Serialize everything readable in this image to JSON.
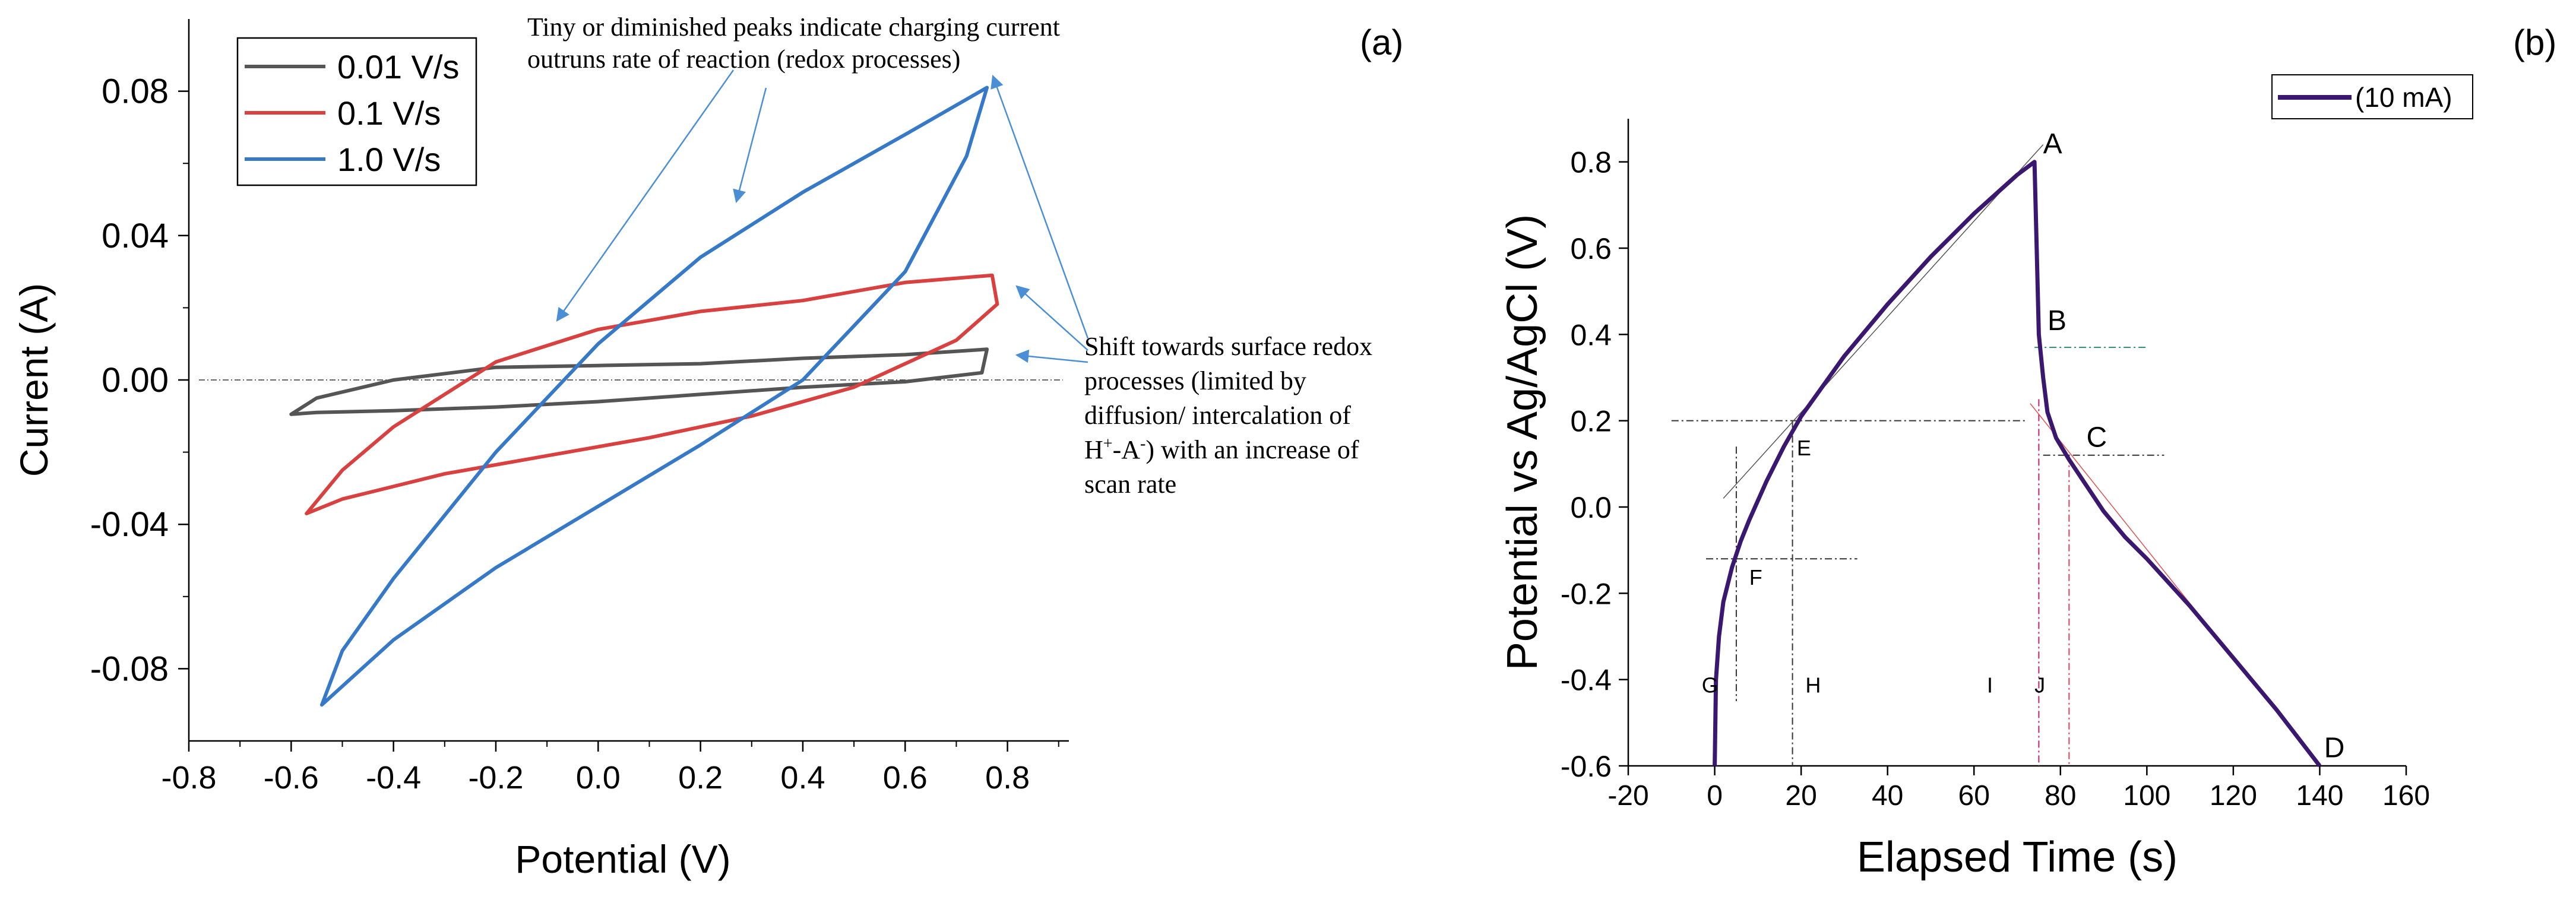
{
  "chart_data": [
    {
      "panel": "(a)",
      "type": "line",
      "title": "",
      "xlabel": "Potential (V)",
      "ylabel": "Current (A)",
      "xlim": [
        -0.8,
        0.92
      ],
      "ylim": [
        -0.1,
        0.1
      ],
      "xticks": [
        -0.8,
        -0.6,
        -0.4,
        -0.2,
        0.0,
        0.2,
        0.4,
        0.6,
        0.8
      ],
      "xtick_labels": [
        "-0.8",
        "-0.6",
        "-0.4",
        "-0.2",
        "0.0",
        "0.2",
        "0.4",
        "0.6",
        "0.8"
      ],
      "yticks": [
        -0.08,
        -0.04,
        0.0,
        0.04,
        0.08
      ],
      "ytick_labels": [
        "-0.08",
        "-0.04",
        "0.00",
        "0.04",
        "0.08"
      ],
      "legend_position": "top-left",
      "series": [
        {
          "name": "0.01 V/s",
          "color": "#555555",
          "x": [
            -0.6,
            -0.55,
            -0.4,
            -0.2,
            0.0,
            0.2,
            0.4,
            0.6,
            0.76,
            0.75,
            0.6,
            0.4,
            0.2,
            0.0,
            -0.2,
            -0.4,
            -0.55,
            -0.6
          ],
          "y": [
            -0.0095,
            -0.005,
            0.0,
            0.0035,
            0.004,
            0.0045,
            0.006,
            0.007,
            0.0085,
            0.002,
            -0.0005,
            -0.002,
            -0.004,
            -0.006,
            -0.0075,
            -0.0085,
            -0.009,
            -0.0095
          ]
        },
        {
          "name": "0.1 V/s",
          "color": "#d94040",
          "x": [
            -0.57,
            -0.5,
            -0.4,
            -0.2,
            0.0,
            0.2,
            0.4,
            0.6,
            0.77,
            0.78,
            0.7,
            0.5,
            0.3,
            0.1,
            -0.1,
            -0.3,
            -0.5,
            -0.57
          ],
          "y": [
            -0.037,
            -0.025,
            -0.013,
            0.005,
            0.014,
            0.019,
            0.022,
            0.027,
            0.029,
            0.021,
            0.011,
            -0.002,
            -0.01,
            -0.016,
            -0.021,
            -0.026,
            -0.033,
            -0.037
          ]
        },
        {
          "name": "1.0 V/s",
          "color": "#3579c8",
          "x": [
            -0.54,
            -0.5,
            -0.4,
            -0.2,
            0.0,
            0.2,
            0.4,
            0.6,
            0.76,
            0.72,
            0.6,
            0.4,
            0.2,
            0.0,
            -0.2,
            -0.4,
            -0.54
          ],
          "y": [
            -0.09,
            -0.075,
            -0.055,
            -0.02,
            0.01,
            0.034,
            0.052,
            0.068,
            0.081,
            0.062,
            0.03,
            0.0,
            -0.018,
            -0.035,
            -0.052,
            -0.072,
            -0.09
          ]
        }
      ],
      "annotations": [
        "Tiny or diminished  peaks indicate charging current outruns rate of reaction (redox processes)",
        "Shift towards surface redox processes (limited by diffusion/ intercalation of H⁺-A⁻) with an increase of scan rate"
      ]
    },
    {
      "panel": "(b)",
      "type": "line",
      "title": "",
      "xlabel": "Elapsed Time (s)",
      "ylabel": "Potential vs Ag/AgCl (V)",
      "xlim": [
        -20,
        160
      ],
      "ylim": [
        -0.6,
        0.9
      ],
      "xticks": [
        -20,
        0,
        20,
        40,
        60,
        80,
        100,
        120,
        140,
        160
      ],
      "xtick_labels": [
        "-20",
        "0",
        "20",
        "40",
        "60",
        "80",
        "100",
        "120",
        "140",
        "160"
      ],
      "yticks": [
        -0.6,
        -0.4,
        -0.2,
        0.0,
        0.2,
        0.4,
        0.6,
        0.8
      ],
      "ytick_labels": [
        "-0.6",
        "-0.4",
        "-0.2",
        "0.0",
        "0.2",
        "0.4",
        "0.6",
        "0.8"
      ],
      "legend_position": "top-right",
      "series": [
        {
          "name": "(10 mA)",
          "color": "#3b1870",
          "x": [
            0,
            0.3,
            1,
            2,
            4,
            6,
            8,
            12,
            16,
            20,
            30,
            40,
            50,
            60,
            70,
            74,
            74.5,
            75,
            76,
            77,
            79,
            82,
            86,
            90,
            95,
            100,
            110,
            120,
            130,
            140
          ],
          "y": [
            -0.6,
            -0.4,
            -0.3,
            -0.22,
            -0.14,
            -0.08,
            -0.03,
            0.06,
            0.14,
            0.21,
            0.35,
            0.47,
            0.58,
            0.68,
            0.77,
            0.8,
            0.6,
            0.4,
            0.3,
            0.22,
            0.16,
            0.11,
            0.05,
            -0.01,
            -0.07,
            -0.12,
            -0.23,
            -0.35,
            -0.47,
            -0.6
          ]
        }
      ],
      "point_labels": [
        "A",
        "B",
        "C",
        "E",
        "F",
        "G",
        "H",
        "I",
        "J",
        "D"
      ]
    }
  ],
  "panel_labels": {
    "a": "(a)",
    "b": "(b)"
  }
}
